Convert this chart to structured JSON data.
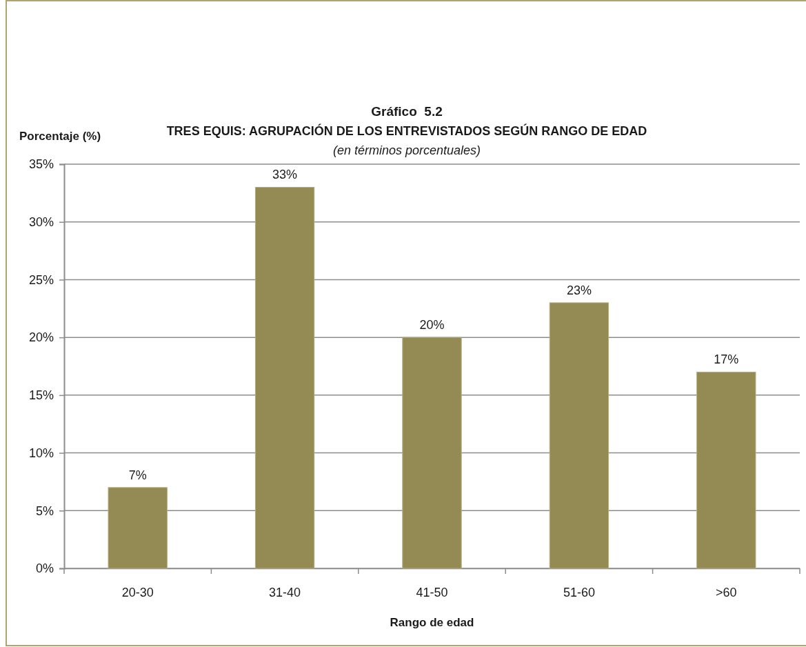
{
  "chart_data": {
    "type": "bar",
    "title": "Gráfico  5.2",
    "subtitle": "TRES EQUIS: AGRUPACIÓN DE LOS ENTREVISTADOS SEGÚN RANGO DE EDAD",
    "annotations": [
      "(en términos porcentuales)"
    ],
    "ylabel": "Porcentaje (%)",
    "xlabel": "Rango de edad",
    "categories": [
      "20-30",
      "31-40",
      "41-50",
      "51-60",
      ">60"
    ],
    "values": [
      7,
      33,
      20,
      23,
      17
    ],
    "value_labels": [
      "7%",
      "33%",
      "20%",
      "23%",
      "17%"
    ],
    "color": "#948a54",
    "ylim": [
      0,
      35
    ],
    "yticks": [
      {
        "value": 0,
        "label": "0%"
      },
      {
        "value": 5,
        "label": "5%"
      },
      {
        "value": 10,
        "label": "10%"
      },
      {
        "value": 15,
        "label": "15%"
      },
      {
        "value": 20,
        "label": "20%"
      },
      {
        "value": 25,
        "label": "25%"
      },
      {
        "value": 30,
        "label": "30%"
      },
      {
        "value": 35,
        "label": "35%"
      }
    ],
    "grid": "y"
  }
}
